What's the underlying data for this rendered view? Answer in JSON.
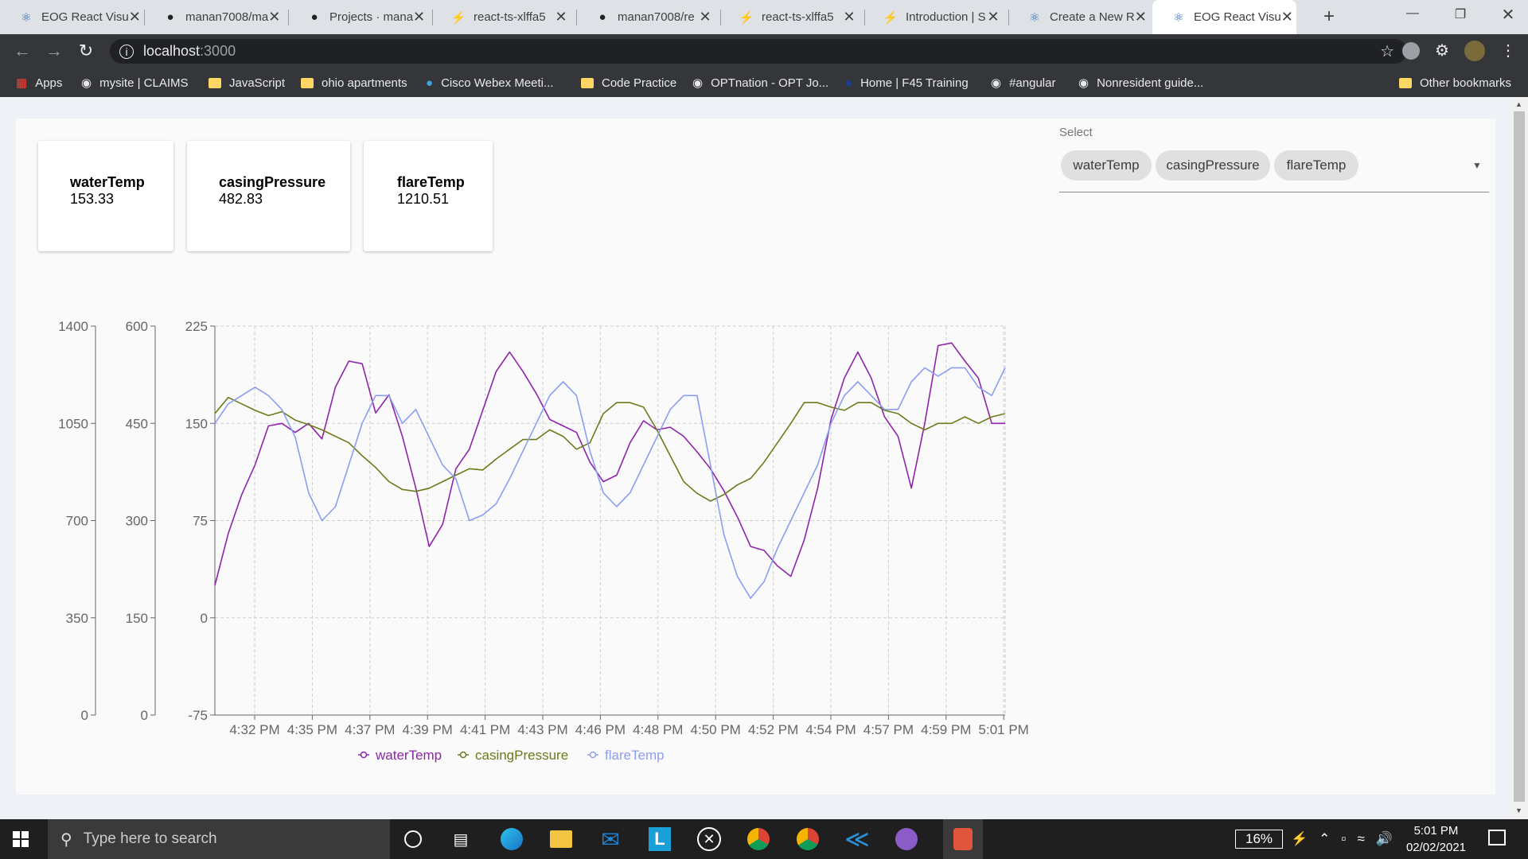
{
  "browser": {
    "tabs": [
      {
        "title": "EOG React Visu",
        "icon": "react-icon",
        "active": false
      },
      {
        "title": "manan7008/ma",
        "icon": "github-icon",
        "active": false
      },
      {
        "title": "Projects · mana",
        "icon": "github-icon",
        "active": false
      },
      {
        "title": "react-ts-xlffa5",
        "icon": "bolt-icon",
        "active": false
      },
      {
        "title": "manan7008/re",
        "icon": "github-icon",
        "active": false
      },
      {
        "title": "react-ts-xlffa5",
        "icon": "bolt-icon",
        "active": false
      },
      {
        "title": "Introduction | S",
        "icon": "bolt-icon",
        "active": false
      },
      {
        "title": "Create a New R",
        "icon": "react-icon",
        "active": false
      },
      {
        "title": "EOG React Visu",
        "icon": "react-icon",
        "active": true
      }
    ],
    "url_host": "localhost",
    "url_port": ":3000",
    "bookmarks": [
      {
        "label": "Apps",
        "icon": "apps-grid-icon"
      },
      {
        "label": "mysite | CLAIMS",
        "icon": "globe-icon"
      },
      {
        "label": "JavaScript",
        "icon": "folder-icon"
      },
      {
        "label": "ohio apartments",
        "icon": "folder-icon"
      },
      {
        "label": "Cisco Webex Meeti...",
        "icon": "webex-icon"
      },
      {
        "label": "Code Practice",
        "icon": "folder-icon"
      },
      {
        "label": "OPTnation - OPT Jo...",
        "icon": "globe-icon"
      },
      {
        "label": "Home | F45 Training",
        "icon": "f45-icon"
      },
      {
        "label": "#angular",
        "icon": "globe-icon"
      },
      {
        "label": "Nonresident guide...",
        "icon": "globe-icon"
      }
    ],
    "other_bookmarks": "Other bookmarks"
  },
  "dashboard": {
    "metrics": [
      {
        "label": "waterTemp",
        "value": "153.33"
      },
      {
        "label": "casingPressure",
        "value": "482.83"
      },
      {
        "label": "flareTemp",
        "value": "1210.51"
      }
    ],
    "select": {
      "label": "Select",
      "chips": [
        "waterTemp",
        "casingPressure",
        "flareTemp"
      ]
    }
  },
  "chart_data": {
    "type": "line",
    "x_ticks": [
      "4:32 PM",
      "4:35 PM",
      "4:37 PM",
      "4:39 PM",
      "4:41 PM",
      "4:43 PM",
      "4:46 PM",
      "4:48 PM",
      "4:50 PM",
      "4:52 PM",
      "4:54 PM",
      "4:57 PM",
      "4:59 PM",
      "5:01 PM"
    ],
    "y_axes": [
      {
        "ticks": [
          "1400",
          "1050",
          "700",
          "350",
          "0"
        ],
        "range": [
          0,
          1400
        ]
      },
      {
        "ticks": [
          "600",
          "450",
          "300",
          "150",
          "0"
        ],
        "range": [
          0,
          600
        ]
      },
      {
        "ticks": [
          "225",
          "150",
          "75",
          "0",
          "-75"
        ],
        "range": [
          -75,
          225
        ]
      }
    ],
    "grid": true,
    "legend_position": "bottom",
    "series": [
      {
        "name": "waterTemp",
        "color": "#8e24aa",
        "axis": 2,
        "values": [
          25,
          65,
          95,
          118,
          148,
          150,
          143,
          150,
          138,
          178,
          198,
          196,
          158,
          172,
          140,
          100,
          55,
          72,
          115,
          130,
          160,
          190,
          205,
          190,
          173,
          153,
          148,
          143,
          120,
          105,
          110,
          135,
          152,
          145,
          147,
          140,
          128,
          115,
          98,
          78,
          55,
          52,
          40,
          32,
          60,
          100,
          153,
          185,
          205,
          185,
          155,
          140,
          100,
          150,
          210,
          212,
          198,
          185,
          150,
          150
        ]
      },
      {
        "name": "casingPressure",
        "color": "#6b7b1c",
        "axis": 1,
        "values": [
          465,
          490,
          480,
          470,
          462,
          468,
          455,
          448,
          440,
          430,
          420,
          400,
          382,
          360,
          348,
          345,
          350,
          360,
          370,
          380,
          378,
          395,
          410,
          425,
          425,
          440,
          430,
          410,
          420,
          465,
          482,
          482,
          475,
          440,
          400,
          360,
          342,
          330,
          340,
          355,
          365,
          390,
          420,
          450,
          482,
          482,
          475,
          470,
          482,
          482,
          470,
          465,
          450,
          440,
          450,
          450,
          460,
          450,
          460,
          465
        ]
      },
      {
        "name": "flareTemp",
        "color": "#8c9ef0",
        "axis": 0,
        "values": [
          1050,
          1120,
          1150,
          1180,
          1150,
          1100,
          1000,
          800,
          700,
          750,
          900,
          1050,
          1150,
          1150,
          1050,
          1100,
          1000,
          900,
          850,
          700,
          720,
          760,
          850,
          950,
          1050,
          1150,
          1200,
          1150,
          950,
          800,
          750,
          800,
          900,
          1000,
          1100,
          1150,
          1150,
          900,
          650,
          500,
          420,
          480,
          600,
          700,
          800,
          900,
          1050,
          1150,
          1200,
          1150,
          1100,
          1100,
          1200,
          1250,
          1220,
          1250,
          1250,
          1180,
          1150,
          1250
        ]
      }
    ]
  },
  "taskbar": {
    "search_placeholder": "Type here to search",
    "battery": "16%",
    "time": "5:01 PM",
    "date": "02/02/2021"
  }
}
